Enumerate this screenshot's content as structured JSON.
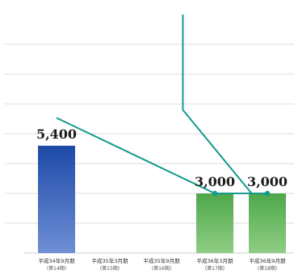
{
  "chart_data": {
    "type": "bar",
    "categories": [
      {
        "line1": "平成34年9月期",
        "line2": "(第14期)"
      },
      {
        "line1": "平成35年3月期",
        "line2": "(第15期)"
      },
      {
        "line1": "平成35年9月期",
        "line2": "(第16期)"
      },
      {
        "line1": "平成36年3月期",
        "line2": "(第17期)"
      },
      {
        "line1": "平成36年9月期",
        "line2": "(第18期)"
      }
    ],
    "series": [
      {
        "kind": "bar",
        "values": [
          5400,
          null,
          null,
          3000,
          3000
        ],
        "labels": [
          "5,400",
          "",
          "",
          "3,000",
          "3,000"
        ],
        "colors": [
          "#1d4aa8",
          null,
          null,
          "#5fb35a",
          "#5fb35a"
        ]
      },
      {
        "kind": "line",
        "color": "#149a8e",
        "points": [
          {
            "category_index": 0,
            "value": 6800
          },
          {
            "category_index": 3,
            "value": 3000
          },
          {
            "category_index": 4,
            "value": 3000
          }
        ]
      },
      {
        "kind": "line",
        "color": "#149a8e",
        "points": [
          {
            "category_index": 2.4,
            "value": 12000
          },
          {
            "category_index": 2.4,
            "value": 7200
          },
          {
            "category_index": 3.7,
            "value": 3000
          }
        ]
      }
    ],
    "ylim": [
      0,
      12000
    ],
    "grid": true,
    "title": "",
    "xlabel": "",
    "ylabel": ""
  }
}
